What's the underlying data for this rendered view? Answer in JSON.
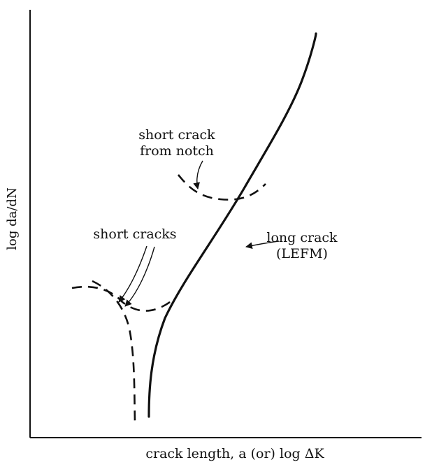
{
  "axes": {
    "ylabel": "log da/dN",
    "xlabel": "crack length, a (or) log ΔK"
  },
  "labels": {
    "notch_line1": "short crack",
    "notch_line2": "from notch",
    "long_line1": "long crack",
    "long_line2": "(LEFM)",
    "short_cracks": "short cracks"
  }
}
